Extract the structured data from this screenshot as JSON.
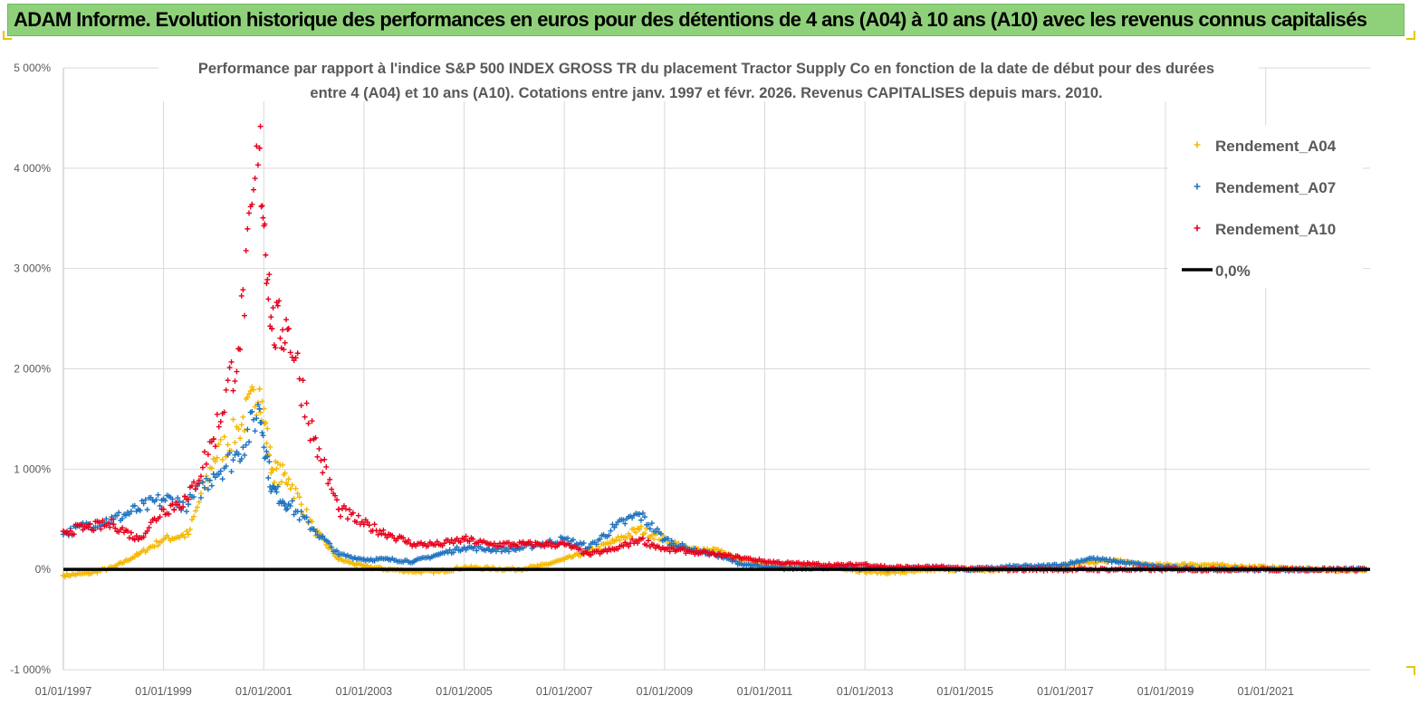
{
  "banner": {
    "title": "ADAM Informe. Evolution historique des performances en euros pour des détentions de 4 ans (A04) à 10 ans (A10) avec les revenus connus capitalisés"
  },
  "chart_data": {
    "type": "scatter",
    "title_line1": "Performance par rapport à l'indice S&P 500 INDEX GROSS TR  du placement Tractor Supply Co en fonction de la date de début pour des durées",
    "title_line2": "entre 4 (A04) et 10 ans (A10).  Cotations entre janv. 1997 et févr. 2026. Revenus CAPITALISES depuis mars. 2010.",
    "xlabel": "",
    "ylabel": "",
    "xlim": [
      "1997-01-01",
      "2023-02-01"
    ],
    "ylim": [
      -1000,
      5000
    ],
    "y_ticks": [
      -1000,
      0,
      1000,
      2000,
      3000,
      4000,
      5000
    ],
    "y_tick_labels": [
      "-1 000%",
      "0%",
      "1 000%",
      "2 000%",
      "3 000%",
      "4 000%",
      "5 000%"
    ],
    "x_ticks": [
      "1997-01-01",
      "1999-01-01",
      "2001-01-01",
      "2003-01-01",
      "2005-01-01",
      "2007-01-01",
      "2009-01-01",
      "2011-01-01",
      "2013-01-01",
      "2015-01-01",
      "2017-01-01",
      "2019-01-01",
      "2021-01-01"
    ],
    "x_tick_labels": [
      "01/01/1997",
      "01/01/1999",
      "01/01/2001",
      "01/01/2003",
      "01/01/2005",
      "01/01/2007",
      "01/01/2009",
      "01/01/2011",
      "01/01/2013",
      "01/01/2015",
      "01/01/2017",
      "01/01/2019",
      "01/01/2021"
    ],
    "grid": true,
    "legend_position": "top-right",
    "series": [
      {
        "name": "Rendement_A04",
        "color": "#f5b800",
        "marker": "plus",
        "points": [
          [
            "1997-01-01",
            -60
          ],
          [
            "1997-07-01",
            -40
          ],
          [
            "1998-01-01",
            20
          ],
          [
            "1998-07-01",
            150
          ],
          [
            "1999-01-01",
            300
          ],
          [
            "1999-07-01",
            350
          ],
          [
            "2000-01-01",
            1100
          ],
          [
            "2000-07-01",
            1400
          ],
          [
            "2000-12-01",
            1800
          ],
          [
            "2001-03-01",
            1000
          ],
          [
            "2001-07-01",
            900
          ],
          [
            "2002-01-01",
            400
          ],
          [
            "2002-07-01",
            100
          ],
          [
            "2003-01-01",
            30
          ],
          [
            "2003-07-01",
            0
          ],
          [
            "2004-01-01",
            -20
          ],
          [
            "2004-07-01",
            -20
          ],
          [
            "2005-01-01",
            20
          ],
          [
            "2005-07-01",
            10
          ],
          [
            "2006-01-01",
            0
          ],
          [
            "2006-07-01",
            30
          ],
          [
            "2007-01-01",
            100
          ],
          [
            "2007-07-01",
            180
          ],
          [
            "2008-01-01",
            280
          ],
          [
            "2008-07-01",
            400
          ],
          [
            "2009-01-01",
            300
          ],
          [
            "2009-07-01",
            200
          ],
          [
            "2010-01-01",
            200
          ],
          [
            "2010-07-01",
            100
          ],
          [
            "2011-01-01",
            50
          ],
          [
            "2011-07-01",
            30
          ],
          [
            "2012-01-01",
            30
          ],
          [
            "2012-07-01",
            20
          ],
          [
            "2013-01-01",
            -20
          ],
          [
            "2013-07-01",
            -30
          ],
          [
            "2014-01-01",
            -20
          ],
          [
            "2014-07-01",
            0
          ],
          [
            "2015-01-01",
            0
          ],
          [
            "2015-07-01",
            -10
          ],
          [
            "2016-01-01",
            10
          ],
          [
            "2016-07-01",
            20
          ],
          [
            "2017-01-01",
            40
          ],
          [
            "2017-07-01",
            70
          ],
          [
            "2018-01-01",
            90
          ],
          [
            "2018-07-01",
            50
          ],
          [
            "2019-01-01",
            40
          ],
          [
            "2019-07-01",
            50
          ],
          [
            "2020-01-01",
            40
          ],
          [
            "2020-07-01",
            30
          ],
          [
            "2021-01-01",
            20
          ],
          [
            "2021-07-01",
            10
          ],
          [
            "2022-01-01",
            0
          ],
          [
            "2022-07-01",
            -10
          ],
          [
            "2023-01-01",
            0
          ]
        ]
      },
      {
        "name": "Rendement_A07",
        "color": "#1f73c0",
        "marker": "plus",
        "points": [
          [
            "1997-01-01",
            350
          ],
          [
            "1997-07-01",
            450
          ],
          [
            "1998-01-01",
            500
          ],
          [
            "1998-07-01",
            600
          ],
          [
            "1999-01-01",
            700
          ],
          [
            "1999-07-01",
            650
          ],
          [
            "2000-01-01",
            950
          ],
          [
            "2000-07-01",
            1150
          ],
          [
            "2000-12-01",
            1600
          ],
          [
            "2001-03-01",
            800
          ],
          [
            "2001-07-01",
            650
          ],
          [
            "2002-01-01",
            400
          ],
          [
            "2002-07-01",
            150
          ],
          [
            "2003-01-01",
            100
          ],
          [
            "2003-07-01",
            100
          ],
          [
            "2004-01-01",
            80
          ],
          [
            "2004-07-01",
            150
          ],
          [
            "2005-01-01",
            220
          ],
          [
            "2005-07-01",
            200
          ],
          [
            "2006-01-01",
            200
          ],
          [
            "2006-07-01",
            250
          ],
          [
            "2007-01-01",
            300
          ],
          [
            "2007-07-01",
            220
          ],
          [
            "2008-01-01",
            420
          ],
          [
            "2008-07-01",
            550
          ],
          [
            "2009-01-01",
            300
          ],
          [
            "2009-07-01",
            200
          ],
          [
            "2010-01-01",
            150
          ],
          [
            "2010-07-01",
            60
          ],
          [
            "2011-01-01",
            20
          ],
          [
            "2011-07-01",
            10
          ],
          [
            "2012-01-01",
            20
          ],
          [
            "2012-07-01",
            20
          ],
          [
            "2013-01-01",
            10
          ],
          [
            "2013-07-01",
            10
          ],
          [
            "2014-01-01",
            20
          ],
          [
            "2014-07-01",
            20
          ],
          [
            "2015-01-01",
            0
          ],
          [
            "2015-07-01",
            10
          ],
          [
            "2016-01-01",
            30
          ],
          [
            "2016-07-01",
            30
          ],
          [
            "2017-01-01",
            50
          ],
          [
            "2017-07-01",
            110
          ],
          [
            "2018-01-01",
            80
          ],
          [
            "2018-07-01",
            50
          ],
          [
            "2019-01-01",
            20
          ],
          [
            "2019-07-01",
            10
          ],
          [
            "2020-01-01",
            0
          ],
          [
            "2020-07-01",
            0
          ],
          [
            "2021-01-01",
            0
          ],
          [
            "2021-07-01",
            0
          ],
          [
            "2022-01-01",
            0
          ],
          [
            "2022-07-01",
            0
          ],
          [
            "2023-01-01",
            0
          ]
        ]
      },
      {
        "name": "Rendement_A10",
        "color": "#e8001c",
        "marker": "plus",
        "points": [
          [
            "1997-01-01",
            380
          ],
          [
            "1997-07-01",
            420
          ],
          [
            "1998-01-01",
            450
          ],
          [
            "1998-07-01",
            300
          ],
          [
            "1999-01-01",
            600
          ],
          [
            "1999-07-01",
            700
          ],
          [
            "2000-01-01",
            1300
          ],
          [
            "2000-07-01",
            2200
          ],
          [
            "2000-12-01",
            4200
          ],
          [
            "2001-03-01",
            2400
          ],
          [
            "2001-07-01",
            2400
          ],
          [
            "2002-01-01",
            1300
          ],
          [
            "2002-07-01",
            600
          ],
          [
            "2003-01-01",
            450
          ],
          [
            "2003-07-01",
            350
          ],
          [
            "2004-01-01",
            250
          ],
          [
            "2004-07-01",
            250
          ],
          [
            "2005-01-01",
            300
          ],
          [
            "2005-07-01",
            250
          ],
          [
            "2006-01-01",
            250
          ],
          [
            "2006-07-01",
            250
          ],
          [
            "2007-01-01",
            250
          ],
          [
            "2007-07-01",
            150
          ],
          [
            "2008-01-01",
            200
          ],
          [
            "2008-07-01",
            300
          ],
          [
            "2009-01-01",
            200
          ],
          [
            "2009-07-01",
            180
          ],
          [
            "2010-01-01",
            150
          ],
          [
            "2010-07-01",
            120
          ],
          [
            "2011-01-01",
            80
          ],
          [
            "2011-07-01",
            60
          ],
          [
            "2012-01-01",
            50
          ],
          [
            "2012-07-01",
            40
          ],
          [
            "2013-01-01",
            50
          ],
          [
            "2013-07-01",
            20
          ],
          [
            "2014-01-01",
            20
          ],
          [
            "2014-07-01",
            20
          ],
          [
            "2015-01-01",
            10
          ],
          [
            "2015-07-01",
            0
          ],
          [
            "2016-01-01",
            0
          ],
          [
            "2016-07-01",
            0
          ],
          [
            "2017-01-01",
            0
          ],
          [
            "2017-07-01",
            0
          ],
          [
            "2018-01-01",
            0
          ],
          [
            "2018-07-01",
            0
          ],
          [
            "2019-01-01",
            0
          ],
          [
            "2019-07-01",
            0
          ],
          [
            "2020-01-01",
            0
          ],
          [
            "2020-07-01",
            0
          ],
          [
            "2021-01-01",
            0
          ],
          [
            "2021-07-01",
            0
          ],
          [
            "2022-01-01",
            0
          ],
          [
            "2022-07-01",
            0
          ],
          [
            "2023-01-01",
            0
          ]
        ]
      },
      {
        "name": "0,0%",
        "color": "#000000",
        "marker": "line",
        "points": [
          [
            "1997-01-01",
            0
          ],
          [
            "2023-02-01",
            0
          ]
        ]
      }
    ]
  }
}
